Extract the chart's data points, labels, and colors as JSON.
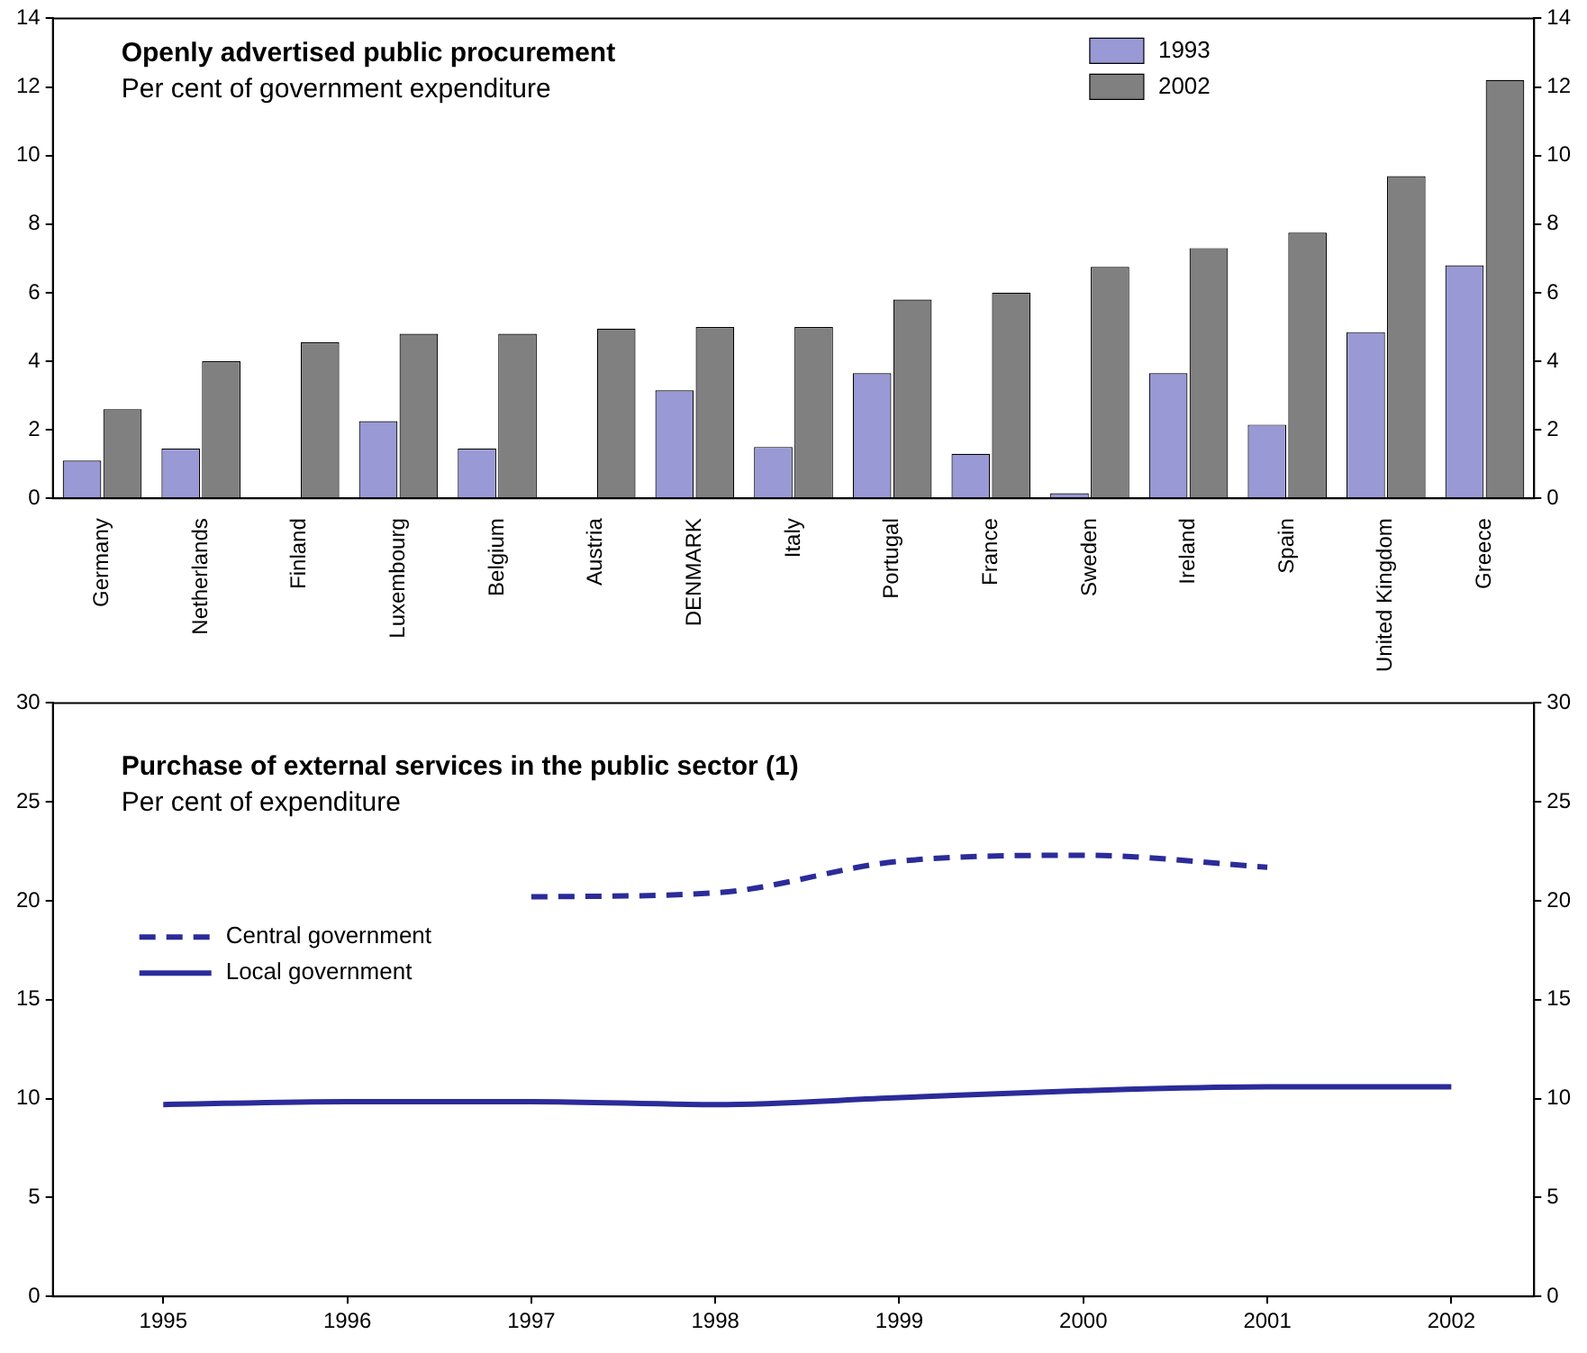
{
  "chart_data": [
    {
      "type": "bar",
      "title": "Openly advertised public procurement",
      "subtitle": "Per cent of government expenditure",
      "categories": [
        "Germany",
        "Netherlands",
        "Finland",
        "Luxembourg",
        "Belgium",
        "Austria",
        "DENMARK",
        "Italy",
        "Portugal",
        "France",
        "Sweden",
        "Ireland",
        "Spain",
        "United Kingdom",
        "Greece"
      ],
      "series": [
        {
          "name": "1993",
          "color": "#9999d6",
          "values": [
            1.1,
            1.45,
            0,
            2.25,
            1.45,
            0,
            3.15,
            1.5,
            3.65,
            1.3,
            0.15,
            3.65,
            2.15,
            4.85,
            6.8
          ]
        },
        {
          "name": "2002",
          "color": "#808080",
          "values": [
            2.6,
            4.0,
            4.55,
            4.8,
            4.8,
            4.95,
            5.0,
            5.0,
            5.8,
            6.0,
            6.75,
            7.3,
            7.75,
            9.4,
            12.2
          ]
        }
      ],
      "ylim": [
        0,
        14
      ],
      "yticks": [
        0,
        2,
        4,
        6,
        8,
        10,
        12,
        14
      ],
      "y2lim": [
        0,
        14
      ],
      "y2ticks": [
        0,
        2,
        4,
        6,
        8,
        10,
        12,
        14
      ],
      "grid": false,
      "legend": "top right"
    },
    {
      "type": "line",
      "title": "Purchase of external services in the public sector (1)",
      "subtitle": "Per cent of expenditure",
      "series": [
        {
          "name": "Central government",
          "color": "#2b2b9a",
          "line_style": "dashed",
          "x": [
            1997,
            1998,
            1999,
            2000,
            2001
          ],
          "values": [
            20.2,
            20.4,
            22.0,
            22.3,
            21.7
          ]
        },
        {
          "name": "Local government",
          "color": "#2b2b9a",
          "line_style": "solid",
          "x": [
            1995,
            1996,
            1997,
            1998,
            1999,
            2000,
            2001,
            2002
          ],
          "values": [
            9.7,
            9.85,
            9.85,
            9.7,
            10.05,
            10.4,
            10.6,
            10.6
          ]
        }
      ],
      "xlim": [
        1994.4,
        2002.45
      ],
      "xticks": [
        1995,
        1996,
        1997,
        1998,
        1999,
        2000,
        2001,
        2002
      ],
      "ylim": [
        0,
        30
      ],
      "yticks": [
        0,
        5,
        10,
        15,
        20,
        25,
        30
      ],
      "y2lim": [
        0,
        30
      ],
      "y2ticks": [
        0,
        5,
        10,
        15,
        20,
        25,
        30
      ],
      "grid": false,
      "legend": "left",
      "marker": "none"
    }
  ]
}
